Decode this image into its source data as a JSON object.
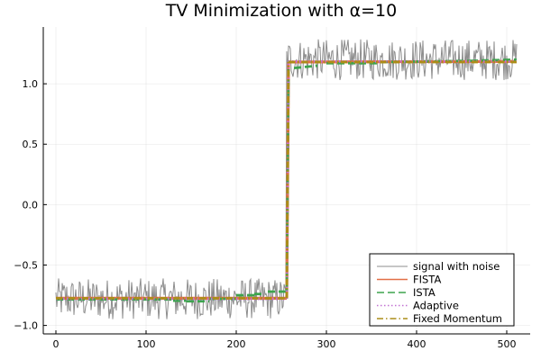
{
  "chart_data": {
    "type": "line",
    "title": "TV Minimization with α=10",
    "xlabel": "",
    "ylabel": "",
    "xlim": [
      -14,
      526
    ],
    "ylim": [
      -1.07,
      1.47
    ],
    "x_ticks": [
      0,
      100,
      200,
      300,
      400,
      500
    ],
    "x_tick_labels": [
      "0",
      "100",
      "200",
      "300",
      "400",
      "500"
    ],
    "y_ticks": [
      -1.0,
      -0.5,
      0.0,
      0.5,
      1.0
    ],
    "y_tick_labels": [
      "−1.0",
      "−0.5",
      "0.0",
      "0.5",
      "1.0"
    ],
    "grid": true,
    "legend_position": "bottom-right",
    "n_points": 512,
    "step_index": 256,
    "series": [
      {
        "name": "signal with noise",
        "style": "solid",
        "color": "#8c8c8c",
        "low_level": -0.78,
        "high_level": 1.2,
        "noise_amplitude": 0.17
      },
      {
        "name": "FISTA",
        "style": "solid",
        "color": "#e26f46",
        "segments": [
          {
            "x": [
              0,
              256
            ],
            "y": [
              -0.775,
              -0.775
            ]
          },
          {
            "x": [
              256,
              258
            ],
            "y": [
              -0.775,
              1.18
            ]
          },
          {
            "x": [
              258,
              511
            ],
            "y": [
              1.18,
              1.185
            ]
          }
        ]
      },
      {
        "name": "ISTA",
        "style": "dashed",
        "color": "#3da44d",
        "segments": [
          {
            "x": [
              0,
              130
            ],
            "y": [
              -0.785,
              -0.785
            ]
          },
          {
            "x": [
              130,
              145
            ],
            "y": [
              -0.795,
              -0.795
            ]
          },
          {
            "x": [
              145,
              170
            ],
            "y": [
              -0.8,
              -0.8
            ]
          },
          {
            "x": [
              170,
              200
            ],
            "y": [
              -0.78,
              -0.78
            ]
          },
          {
            "x": [
              200,
              220
            ],
            "y": [
              -0.75,
              -0.75
            ]
          },
          {
            "x": [
              220,
              232
            ],
            "y": [
              -0.74,
              -0.74
            ]
          },
          {
            "x": [
              235,
              256
            ],
            "y": [
              -0.72,
              -0.72
            ]
          },
          {
            "x": [
              256,
              258
            ],
            "y": [
              -0.72,
              1.12
            ]
          },
          {
            "x": [
              264,
              290
            ],
            "y": [
              1.13,
              1.15
            ]
          },
          {
            "x": [
              300,
              360
            ],
            "y": [
              1.17,
              1.17
            ]
          },
          {
            "x": [
              360,
              460
            ],
            "y": [
              1.18,
              1.19
            ]
          },
          {
            "x": [
              460,
              511
            ],
            "y": [
              1.19,
              1.2
            ]
          }
        ]
      },
      {
        "name": "Adaptive",
        "style": "dotted",
        "color": "#c271d2",
        "segments": [
          {
            "x": [
              0,
              256
            ],
            "y": [
              -0.78,
              -0.78
            ]
          },
          {
            "x": [
              256,
              258
            ],
            "y": [
              -0.78,
              1.19
            ]
          },
          {
            "x": [
              258,
              511
            ],
            "y": [
              1.185,
              1.185
            ]
          }
        ]
      },
      {
        "name": "Fixed Momentum",
        "style": "dashdot",
        "color": "#ac8d18",
        "segments": [
          {
            "x": [
              0,
              256
            ],
            "y": [
              -0.775,
              -0.775
            ]
          },
          {
            "x": [
              256,
              258
            ],
            "y": [
              -0.775,
              1.18
            ]
          },
          {
            "x": [
              258,
              511
            ],
            "y": [
              1.18,
              1.18
            ]
          }
        ]
      }
    ]
  }
}
